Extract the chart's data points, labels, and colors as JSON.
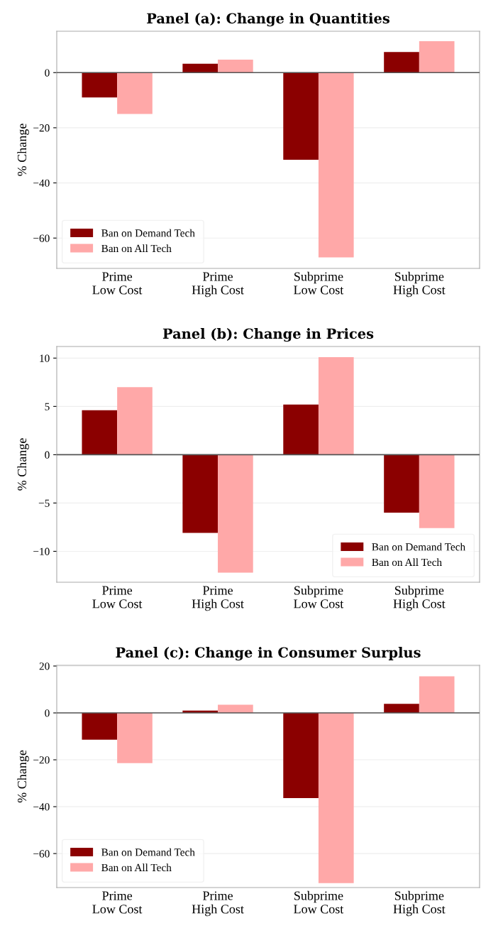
{
  "chart_data": [
    {
      "type": "bar",
      "title": "Panel (a): Change in Quantities",
      "ylabel": "% Change",
      "categories": [
        "Prime\nLow Cost",
        "Prime\nHigh Cost",
        "Subprime\nLow Cost",
        "Subprime\nHigh Cost"
      ],
      "series": [
        {
          "name": "Ban on Demand Tech",
          "color": "#8b0000",
          "values": [
            -9,
            3.2,
            -31.6,
            7.5
          ]
        },
        {
          "name": "Ban on All Tech",
          "color": "#ffa8a8",
          "values": [
            -15,
            4.7,
            -67,
            11.4
          ]
        }
      ],
      "ylim": [
        -71,
        15
      ],
      "yticks": [
        {
          "value": -60,
          "label": "−60"
        },
        {
          "value": -40,
          "label": "−40"
        },
        {
          "value": -20,
          "label": "−20"
        },
        0
      ],
      "ref_lines": [
        {
          "axis": "y",
          "value": 0,
          "color": "#555555"
        }
      ],
      "grid": "y",
      "legend": "bottom left"
    },
    {
      "type": "bar",
      "title": "Panel (b): Change in Prices",
      "ylabel": "% Change",
      "categories": [
        "Prime\nLow Cost",
        "Prime\nHigh Cost",
        "Subprime\nLow Cost",
        "Subprime\nHigh Cost"
      ],
      "series": [
        {
          "name": "Ban on Demand Tech",
          "color": "#8b0000",
          "values": [
            4.6,
            -8.1,
            5.2,
            -6
          ]
        },
        {
          "name": "Ban on All Tech",
          "color": "#ffa8a8",
          "values": [
            7.0,
            -12.2,
            10.1,
            -7.6
          ]
        }
      ],
      "ylim": [
        -13.2,
        11.2
      ],
      "yticks": [
        {
          "value": -10,
          "label": "−10"
        },
        {
          "value": -5,
          "label": "−5"
        },
        0,
        5,
        10
      ],
      "ref_lines": [
        {
          "axis": "y",
          "value": 0,
          "color": "#555555"
        }
      ],
      "grid": "y",
      "legend": "bottom right"
    },
    {
      "type": "bar",
      "title": "Panel (c): Change in Consumer Surplus",
      "ylabel": "% Change",
      "categories": [
        "Prime\nLow Cost",
        "Prime\nHigh Cost",
        "Subprime\nLow Cost",
        "Subprime\nHigh Cost"
      ],
      "series": [
        {
          "name": "Ban on Demand Tech",
          "color": "#8b0000",
          "values": [
            -11.4,
            1.0,
            -36.3,
            3.9
          ]
        },
        {
          "name": "Ban on All Tech",
          "color": "#ffa8a8",
          "values": [
            -21.4,
            3.5,
            -72.6,
            15.6
          ]
        }
      ],
      "ylim": [
        -74.5,
        20.3
      ],
      "yticks": [
        {
          "value": -60,
          "label": "−60"
        },
        {
          "value": -40,
          "label": "−40"
        },
        {
          "value": -20,
          "label": "−20"
        },
        0,
        20
      ],
      "ref_lines": [
        {
          "axis": "y",
          "value": 0,
          "color": "#555555"
        }
      ],
      "grid": "y",
      "legend": "bottom left"
    }
  ]
}
